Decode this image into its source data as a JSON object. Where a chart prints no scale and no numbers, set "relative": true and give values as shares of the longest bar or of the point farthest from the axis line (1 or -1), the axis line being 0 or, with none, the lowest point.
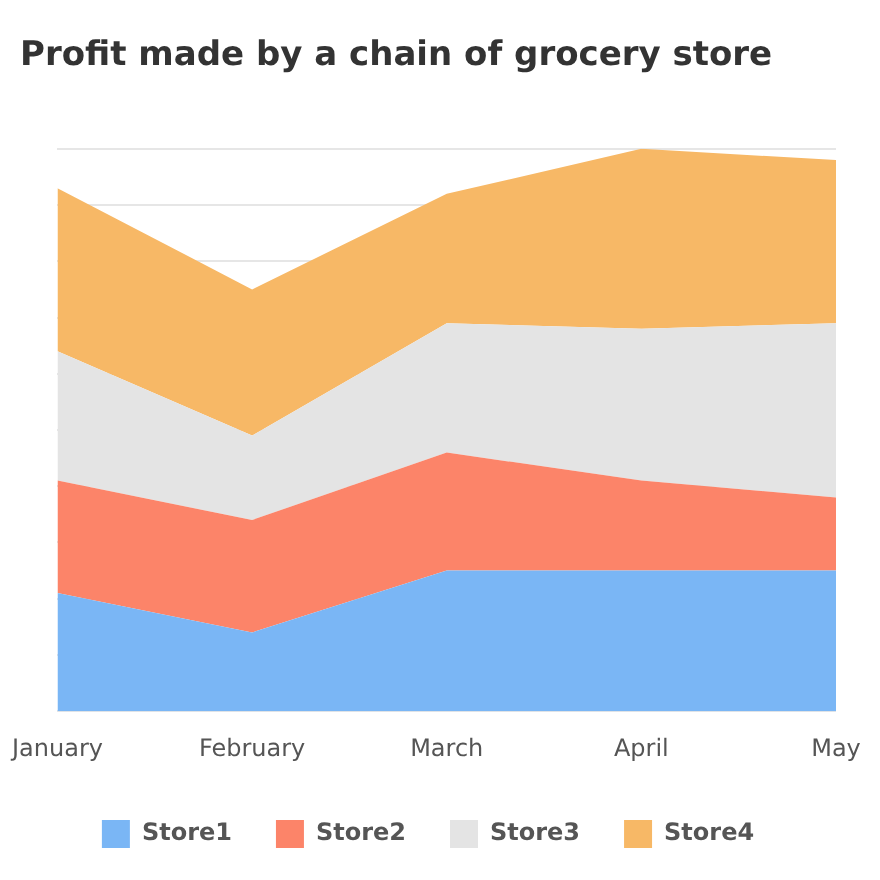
{
  "chart_data": {
    "type": "area",
    "title": "Profit made by a chain of grocery store",
    "categories": [
      "January",
      "February",
      "March",
      "April",
      "May"
    ],
    "relative": true,
    "stacked": true,
    "grid": "y",
    "legend": "bottom",
    "marker": "none",
    "series": [
      {
        "name": "Store1",
        "color": "#7ab6f5",
        "values": [
          0.21,
          0.14,
          0.25,
          0.25,
          0.25
        ]
      },
      {
        "name": "Store2",
        "color": "#fc8469",
        "values": [
          0.2,
          0.2,
          0.21,
          0.16,
          0.13
        ]
      },
      {
        "name": "Store3",
        "color": "#e4e4e4",
        "values": [
          0.23,
          0.15,
          0.23,
          0.27,
          0.31
        ]
      },
      {
        "name": "Store4",
        "color": "#f7b866",
        "values": [
          0.29,
          0.26,
          0.23,
          0.32,
          0.29
        ]
      }
    ]
  }
}
